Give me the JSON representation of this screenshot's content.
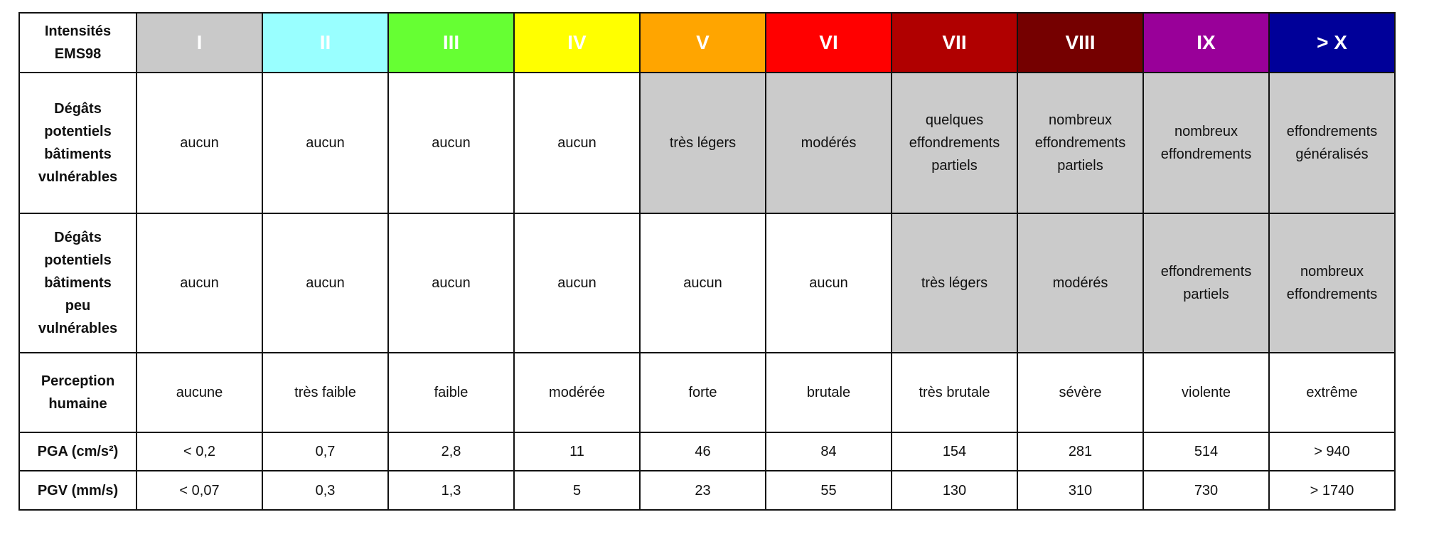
{
  "table": {
    "header": [
      "Intensités EMS98",
      "I",
      "II",
      "III",
      "IV",
      "V",
      "VI",
      "VII",
      "VIII",
      "IX",
      "> X"
    ],
    "rows": [
      {
        "label": "Dégâts potentiels bâtiments vulnérables",
        "cells": [
          "aucun",
          "aucun",
          "aucun",
          "aucun",
          "très légers",
          "modérés",
          "quelques effondrements partiels",
          "nombreux effondrements partiels",
          "nombreux effondrements",
          "effondrements généralisés"
        ]
      },
      {
        "label": "Dégâts potentiels bâtiments peu vulnérables",
        "cells": [
          "aucun",
          "aucun",
          "aucun",
          "aucun",
          "aucun",
          "aucun",
          "très légers",
          "modérés",
          "effondrements partiels",
          "nombreux effondrements"
        ]
      },
      {
        "label": "Perception humaine",
        "cells": [
          "aucune",
          "très faible",
          "faible",
          "modérée",
          "forte",
          "brutale",
          "très brutale",
          "sévère",
          "violente",
          "extrême"
        ]
      },
      {
        "label": "PGA (cm/s²)",
        "cells": [
          "< 0,2",
          "0,7",
          "2,8",
          11,
          46,
          84,
          154,
          281,
          514,
          "> 940"
        ]
      },
      {
        "label": "PGV (mm/s)",
        "cells": [
          "< 0,07",
          "0,3",
          "1,3",
          5,
          23,
          55,
          130,
          310,
          730,
          "> 1740"
        ]
      }
    ]
  }
}
